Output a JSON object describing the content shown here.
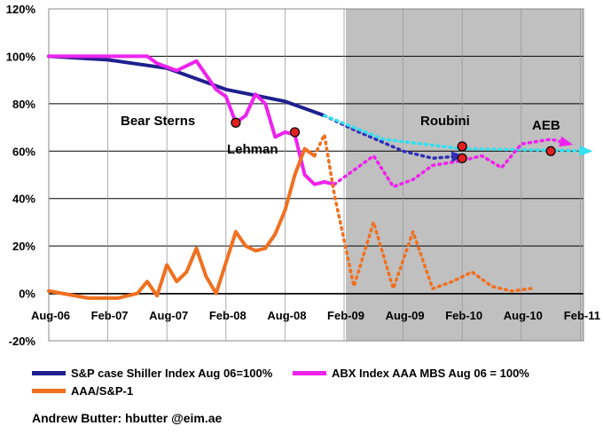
{
  "chart_data": {
    "type": "line",
    "x_tick_labels": [
      "Aug-06",
      "Feb-07",
      "Aug-07",
      "Feb-08",
      "Aug-08",
      "Feb-09",
      "Aug-09",
      "Feb-10",
      "Aug-10",
      "Feb-11"
    ],
    "y_tick_labels": [
      "-20%",
      "0%",
      "20%",
      "40%",
      "60%",
      "80%",
      "100%",
      "120%"
    ],
    "ylim": [
      -20,
      120
    ],
    "grid": true,
    "forecast_shading": {
      "from": "Jan-09",
      "to": "Feb-11",
      "color": "#c0c0c0"
    },
    "series": [
      {
        "name": "S&P case Shiller Index Aug 06=100%",
        "color": "#1f1f8f",
        "style": "solid",
        "x": [
          0,
          6,
          12,
          18,
          24,
          28
        ],
        "values": [
          100,
          98.5,
          95,
          86,
          81,
          75
        ]
      },
      {
        "name": "",
        "color": "#2f2fb8",
        "style": "dotted",
        "x": [
          28,
          31,
          36,
          39,
          42
        ],
        "values": [
          75,
          69,
          60,
          57,
          58
        ]
      },
      {
        "name": "",
        "color": "#33e0f0",
        "style": "dotted",
        "x": [
          28,
          34,
          42,
          50,
          55
        ],
        "values": [
          75,
          65,
          61,
          60.5,
          60
        ]
      },
      {
        "name": "ABX Index AAA MBS Aug 06 = 100%",
        "color": "#ee22ee",
        "style": "solid",
        "x": [
          0,
          6,
          8,
          10,
          11,
          13,
          15,
          17,
          18,
          19,
          20,
          21,
          22,
          23,
          24,
          25,
          26,
          27,
          28,
          29
        ],
        "values": [
          100,
          100,
          100,
          100,
          97,
          94,
          98,
          86,
          83,
          72,
          75,
          84,
          80,
          66,
          68,
          67,
          50,
          46,
          47,
          46
        ]
      },
      {
        "name": "",
        "color": "#ee22ee",
        "style": "dotted",
        "x": [
          29,
          33,
          35,
          37,
          39,
          42,
          44,
          46,
          48,
          51,
          53
        ],
        "values": [
          46,
          58,
          45,
          48,
          54,
          56,
          58,
          53,
          63,
          65,
          63
        ]
      },
      {
        "name": "AAA/S&P-1",
        "color": "#f07020",
        "style": "solid",
        "x": [
          0,
          4,
          7,
          9,
          10,
          11,
          12,
          13,
          14,
          15,
          16,
          17,
          18,
          19,
          20,
          21,
          22,
          23,
          24,
          25,
          26,
          27
        ],
        "values": [
          1,
          -2,
          -2,
          0,
          5,
          -1,
          12,
          5,
          9,
          19,
          7,
          0,
          13,
          26,
          20,
          18,
          19,
          25,
          35,
          50,
          61,
          58
        ]
      },
      {
        "name": "",
        "color": "#f07020",
        "style": "dotted",
        "x": [
          27,
          28,
          29,
          31,
          33,
          35,
          37,
          39,
          41,
          43,
          45,
          47,
          49
        ],
        "values": [
          58,
          67,
          42,
          3,
          30,
          2,
          26,
          2,
          5,
          9,
          3,
          1,
          2
        ]
      }
    ],
    "events": [
      {
        "label": "Bear Sterns",
        "x": 19,
        "y": 72
      },
      {
        "label": "Lehman",
        "x": 25,
        "y": 68
      },
      {
        "label": "Roubini",
        "x": 42,
        "y": 62
      },
      {
        "label": "AEB",
        "x": 51,
        "y": 60
      }
    ],
    "extra_points": [
      {
        "x": 42,
        "y": 57
      }
    ]
  },
  "credit": "Andrew Butter:   hbutter @eim.ae"
}
